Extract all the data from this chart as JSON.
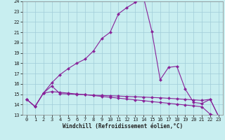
{
  "xlabel": "Windchill (Refroidissement éolien,°C)",
  "xlim_min": -0.5,
  "xlim_max": 23.5,
  "ylim_min": 13,
  "ylim_max": 24,
  "yticks": [
    13,
    14,
    15,
    16,
    17,
    18,
    19,
    20,
    21,
    22,
    23,
    24
  ],
  "xticks": [
    0,
    1,
    2,
    3,
    4,
    5,
    6,
    7,
    8,
    9,
    10,
    11,
    12,
    13,
    14,
    15,
    16,
    17,
    18,
    19,
    20,
    21,
    22,
    23
  ],
  "background_color": "#c8eef0",
  "grid_color": "#a0ccd8",
  "line_color": "#882299",
  "line1_y": [
    14.5,
    13.8,
    15.1,
    15.8,
    15.05,
    15.02,
    14.98,
    14.95,
    14.9,
    14.88,
    14.85,
    14.82,
    14.78,
    14.75,
    14.72,
    14.68,
    14.65,
    14.6,
    14.55,
    14.5,
    14.45,
    14.4,
    14.5,
    12.85
  ],
  "line2_y": [
    14.5,
    13.8,
    15.1,
    15.25,
    15.18,
    15.1,
    15.02,
    14.95,
    14.87,
    14.78,
    14.7,
    14.62,
    14.53,
    14.45,
    14.37,
    14.28,
    14.2,
    14.12,
    14.03,
    13.95,
    13.87,
    13.78,
    13.05,
    12.85
  ],
  "line3_y": [
    14.5,
    13.8,
    15.1,
    16.1,
    16.9,
    17.5,
    18.0,
    18.4,
    19.2,
    20.4,
    21.0,
    22.8,
    23.4,
    23.9,
    24.4,
    21.1,
    16.4,
    17.6,
    17.7,
    15.5,
    14.2,
    14.1,
    14.5,
    12.85
  ]
}
